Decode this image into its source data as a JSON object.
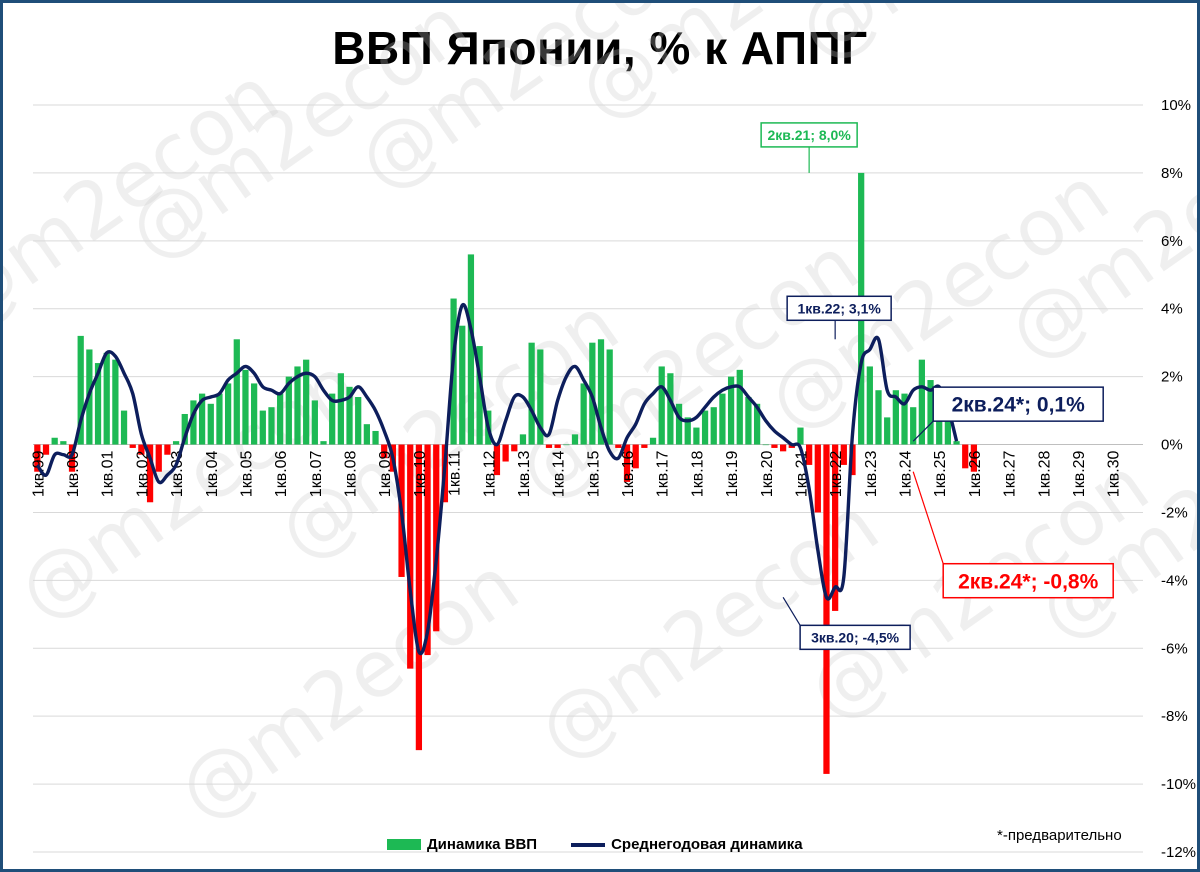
{
  "title": "ВВП Японии, % к АППГ",
  "watermark": "@m2econ",
  "legend": {
    "bar_label": "Динамика ВВП",
    "line_label": "Среднегодовая динамика"
  },
  "footnote": "*-предварительно",
  "colors": {
    "positive_bar": "#1db954",
    "negative_bar": "#ff0000",
    "line": "#0d1e5c",
    "grid": "#d9d9d9",
    "frame": "#1f4e79"
  },
  "chart_data": {
    "type": "bar",
    "ylim": [
      -12,
      10
    ],
    "y_ticks": [
      "10%",
      "8%",
      "6%",
      "4%",
      "2%",
      "0%",
      "-2%",
      "-4%",
      "-6%",
      "-8%",
      "-10%",
      "-12%"
    ],
    "x_tick_labels": [
      "1кв.99",
      "1кв.00",
      "1кв.01",
      "1кв.02",
      "1кв.03",
      "1кв.04",
      "1кв.05",
      "1кв.06",
      "1кв.07",
      "1кв.08",
      "1кв.09",
      "1кв.10",
      "1кв.11",
      "1кв.12",
      "1кв.13",
      "1кв.14",
      "1кв.15",
      "1кв.16",
      "1кв.17",
      "1кв.18",
      "1кв.19",
      "1кв.20",
      "1кв.21",
      "1кв.22",
      "1кв.23",
      "1кв.24",
      "1кв.25",
      "1кв.26",
      "1кв.27",
      "1кв.28",
      "1кв.29",
      "1кв.30"
    ],
    "quarters_total": 128,
    "series": [
      {
        "name": "Динамика ВВП",
        "type": "bar",
        "values": [
          -0.8,
          -0.3,
          0.2,
          0.1,
          -0.8,
          3.2,
          2.8,
          2.4,
          2.7,
          2.5,
          1.0,
          -0.1,
          -0.3,
          -1.7,
          -0.8,
          -0.3,
          0.1,
          0.9,
          1.3,
          1.5,
          1.2,
          1.5,
          1.8,
          3.1,
          2.2,
          1.8,
          1.0,
          1.1,
          1.5,
          2.0,
          2.3,
          2.5,
          1.3,
          0.1,
          1.5,
          2.1,
          1.7,
          1.4,
          0.6,
          0.4,
          -0.4,
          -0.8,
          -3.9,
          -6.6,
          -9.0,
          -6.2,
          -5.5,
          -1.7,
          4.3,
          3.5,
          5.6,
          2.9,
          1.0,
          -0.9,
          -0.5,
          -0.2,
          0.3,
          3.0,
          2.8,
          -0.1,
          -0.1,
          0.0,
          0.3,
          1.8,
          3.0,
          3.1,
          2.8,
          -0.1,
          -1.1,
          -0.7,
          -0.1,
          0.2,
          2.3,
          2.1,
          1.2,
          0.8,
          0.5,
          1.0,
          1.1,
          1.5,
          2.0,
          2.2,
          1.4,
          1.2,
          0.0,
          -0.1,
          -0.2,
          -0.1,
          0.5,
          -0.6,
          -2.0,
          -9.7,
          -4.9,
          -0.6,
          -0.9,
          8.0,
          2.3,
          1.6,
          0.8,
          1.6,
          1.5,
          1.1,
          2.5,
          1.9,
          1.3,
          0.9,
          0.1,
          -0.7,
          -0.8,
          null,
          null,
          null,
          null,
          null,
          null,
          null,
          null,
          null,
          null,
          null,
          null,
          null,
          null,
          null,
          null,
          null,
          null,
          null,
          null,
          null,
          null,
          null
        ]
      },
      {
        "name": "Среднегодовая динамика",
        "type": "line",
        "values": [
          -0.6,
          -0.9,
          -0.3,
          -0.3,
          -0.3,
          0.7,
          1.5,
          2.1,
          2.7,
          2.6,
          2.1,
          1.5,
          0.3,
          -0.4,
          -1.1,
          -0.9,
          -0.6,
          0.2,
          0.9,
          1.3,
          1.4,
          1.5,
          1.9,
          2.1,
          2.3,
          2.1,
          1.7,
          1.6,
          1.5,
          1.8,
          2.0,
          2.1,
          2.0,
          1.6,
          1.3,
          1.3,
          1.4,
          1.7,
          1.4,
          1.0,
          0.4,
          -0.4,
          -2.0,
          -4.3,
          -6.1,
          -5.5,
          -3.4,
          -0.6,
          2.6,
          4.1,
          3.4,
          2.0,
          0.5,
          0.0,
          0.7,
          1.4,
          1.4,
          1.0,
          0.5,
          0.3,
          1.3,
          2.0,
          2.3,
          1.9,
          1.4,
          0.5,
          -0.2,
          -0.4,
          0.2,
          0.6,
          1.2,
          1.5,
          1.7,
          1.3,
          0.8,
          0.7,
          0.8,
          1.1,
          1.4,
          1.6,
          1.7,
          1.7,
          1.4,
          1.1,
          0.7,
          0.4,
          0.2,
          0.0,
          -0.1,
          -1.3,
          -3.1,
          -4.5,
          -4.2,
          -3.9,
          0.3,
          2.4,
          2.8,
          3.1,
          1.6,
          1.4,
          1.2,
          1.6,
          1.7,
          1.6,
          1.7,
          1.1,
          0.1,
          null,
          null,
          null,
          null,
          null,
          null,
          null,
          null,
          null,
          null,
          null,
          null,
          null,
          null,
          null,
          null,
          null,
          null,
          null,
          null,
          null,
          null,
          null
        ]
      }
    ],
    "annotations": [
      {
        "text": "2кв.21; 8,0%",
        "quarter_index": 89,
        "value": 8.0,
        "color": "#1db954"
      },
      {
        "text": "1кв.22; 3,1%",
        "quarter_index": 92,
        "value": 3.1,
        "color": "#0d1e5c"
      },
      {
        "text": "3кв.20; -4,5%",
        "quarter_index": 86,
        "value": -4.5,
        "color": "#0d1e5c"
      },
      {
        "text": "2кв.24*; 0,1%",
        "quarter_index": 101,
        "value": 0.1,
        "color": "#0d1e5c"
      },
      {
        "text": "2кв.24*; -0,8%",
        "quarter_index": 101,
        "value": -0.8,
        "color": "#ff0000"
      }
    ]
  }
}
